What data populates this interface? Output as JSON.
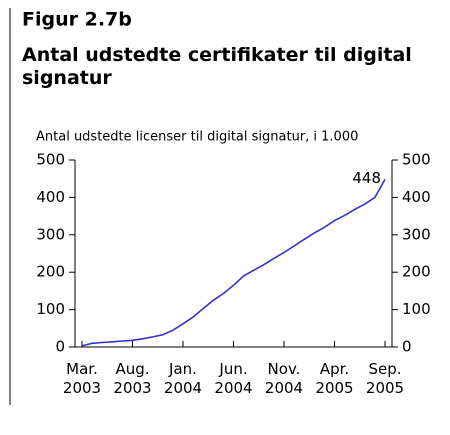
{
  "chart_data": {
    "type": "line",
    "title": "Figur 2.7b",
    "subtitle": "Antal udstedte certifikater til digital signatur",
    "y_label": "Antal udstedte licenser til digital signatur, i 1.000",
    "categories": [
      "Mar. 2003",
      null,
      null,
      null,
      null,
      "Aug. 2003",
      null,
      null,
      null,
      null,
      "Jan. 2004",
      null,
      null,
      null,
      null,
      "Jun. 2004",
      null,
      null,
      null,
      null,
      "Nov. 2004",
      null,
      null,
      null,
      null,
      "Apr. 2005",
      null,
      null,
      null,
      null,
      "Sep. 2005"
    ],
    "series": [
      {
        "name": "Antal udstedte licenser",
        "color": "#3333cc",
        "values": [
          3,
          10,
          12,
          14,
          16,
          18,
          22,
          27,
          33,
          45,
          62,
          80,
          103,
          125,
          143,
          165,
          190,
          205,
          220,
          237,
          253,
          270,
          288,
          305,
          320,
          338,
          352,
          368,
          382,
          400,
          448
        ]
      }
    ],
    "ylim": [
      0,
      500
    ],
    "yticks": [
      0,
      100,
      200,
      300,
      400,
      500
    ],
    "y2lim": [
      0,
      500
    ],
    "y2ticks": [
      0,
      100,
      200,
      300,
      400,
      500
    ],
    "grid": false
  }
}
